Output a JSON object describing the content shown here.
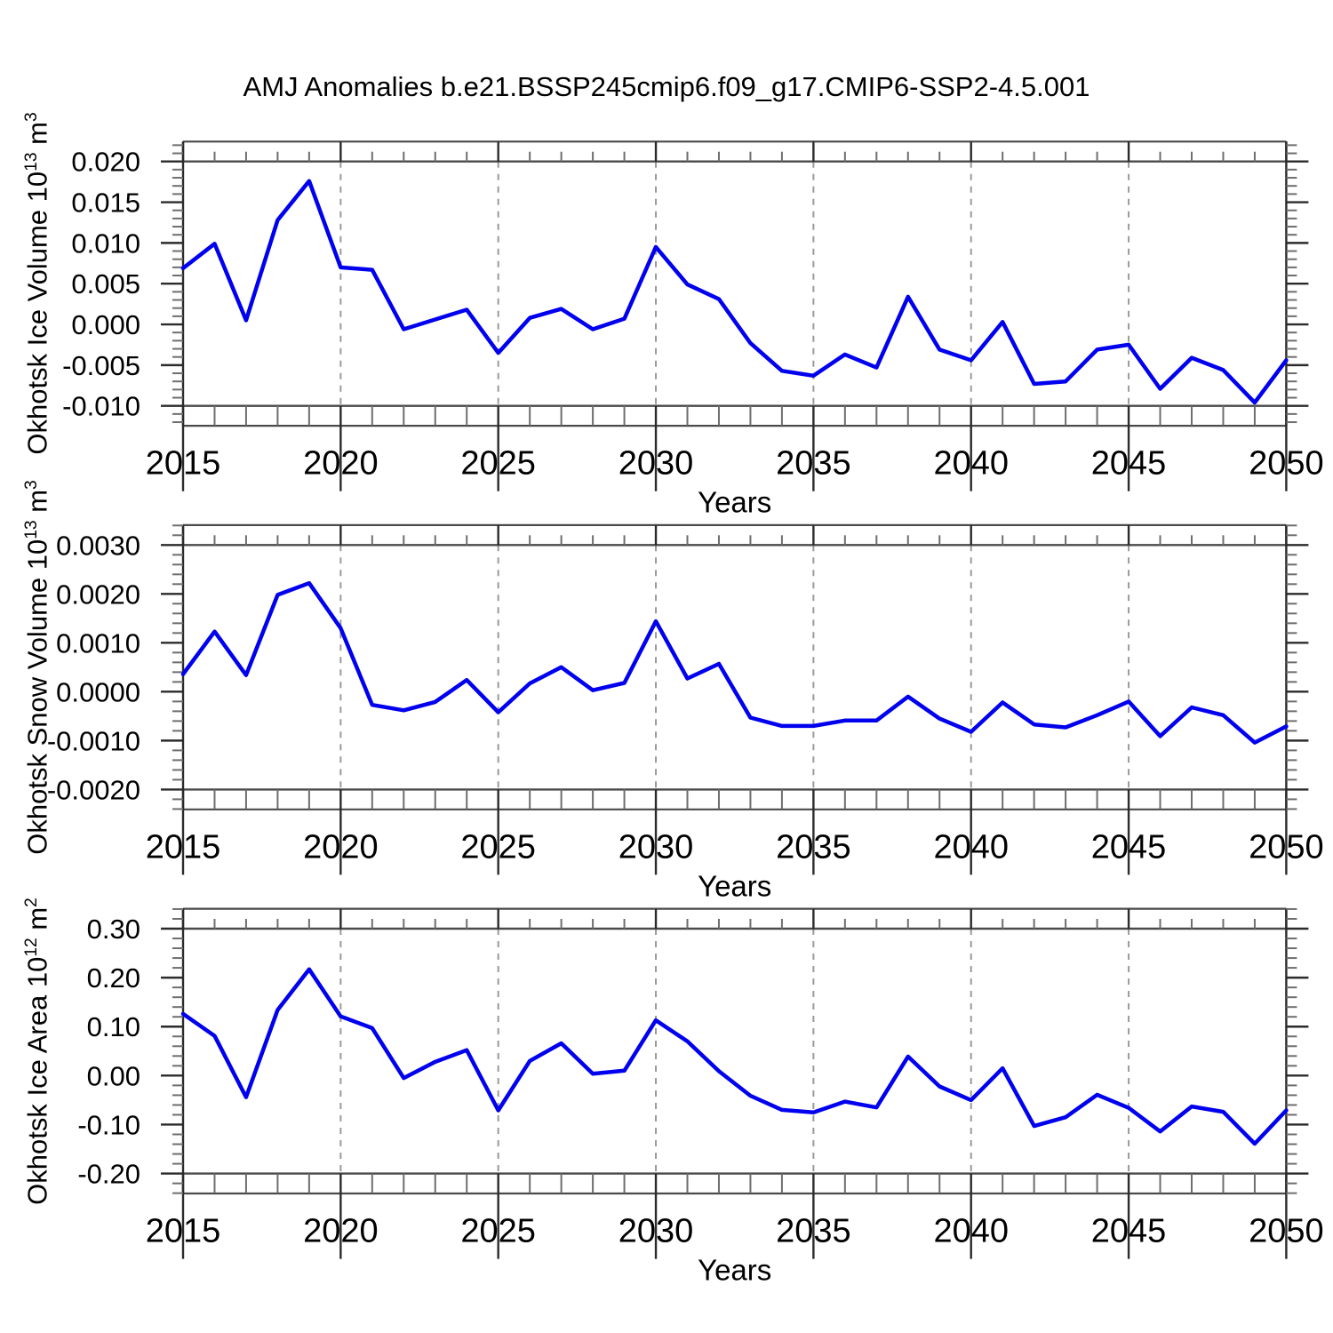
{
  "title": "AMJ Anomalies b.e21.BSSP245cmip6.f09_g17.CMIP6-SSP2-4.5.001",
  "colors": {
    "line": "#0000ee",
    "grid_dash": "#9a9a9a",
    "frame": "#4a4a4a",
    "tick_major": "#2b2b2b",
    "tick_minor": "#6e6e6e",
    "text": "#000000"
  },
  "x_axis": {
    "label": "Years",
    "min": 2015,
    "max": 2050,
    "major_tick_years": [
      2015,
      2020,
      2025,
      2030,
      2035,
      2040,
      2045,
      2050
    ],
    "grid_years": [
      2020,
      2025,
      2030,
      2035,
      2040,
      2045
    ],
    "minor_step": 1
  },
  "chart_data": [
    {
      "type": "line",
      "title": "AMJ Anomalies b.e21.BSSP245cmip6.f09_g17.CMIP6-SSP2-4.5.001",
      "ylabel": "Okhotsk Ice Volume 10^13 m^3",
      "ylabel_parts": [
        [
          "t",
          "Okhotsk Ice Volume 10"
        ],
        [
          "sup",
          "13"
        ],
        [
          "t",
          " m"
        ],
        [
          "sup",
          "3"
        ]
      ],
      "xlabel": "Years",
      "ylim": [
        -0.01,
        0.02
      ],
      "ytick_labels": [
        "0.020",
        "0.015",
        "0.010",
        "0.005",
        "0.000",
        "-0.005",
        "-0.010"
      ],
      "yminor_step": 0.001,
      "grid": "vertical-dashed",
      "legend": "none",
      "x": [
        2015,
        2016,
        2017,
        2018,
        2019,
        2020,
        2021,
        2022,
        2023,
        2024,
        2025,
        2026,
        2027,
        2028,
        2029,
        2030,
        2031,
        2032,
        2033,
        2034,
        2035,
        2036,
        2037,
        2038,
        2039,
        2040,
        2041,
        2042,
        2043,
        2044,
        2045,
        2046,
        2047,
        2048,
        2049,
        2050
      ],
      "values": [
        0.0069,
        0.0099,
        0.0005,
        0.0128,
        0.0176,
        0.007,
        0.0067,
        -0.0006,
        0.0006,
        0.0018,
        -0.0035,
        0.0008,
        0.0019,
        -0.0006,
        0.0007,
        0.0095,
        0.0049,
        0.0031,
        -0.0023,
        -0.0057,
        -0.0063,
        -0.0037,
        -0.0053,
        0.0034,
        -0.0031,
        -0.0044,
        0.0003,
        -0.0073,
        -0.007,
        -0.0031,
        -0.0025,
        -0.0079,
        -0.0041,
        -0.0056,
        -0.0096,
        -0.0044
      ]
    },
    {
      "type": "line",
      "title": "",
      "ylabel": "Okhotsk Snow Volume 10^13 m^3",
      "ylabel_parts": [
        [
          "t",
          "Okhotsk Snow Volume 10"
        ],
        [
          "sup",
          "13"
        ],
        [
          "t",
          " m"
        ],
        [
          "sup",
          "3"
        ]
      ],
      "xlabel": "Years",
      "ylim": [
        -0.002,
        0.003
      ],
      "ytick_labels": [
        "0.0030",
        "0.0020",
        "0.0010",
        "0.0000",
        "-0.0010",
        "-0.0020"
      ],
      "yminor_step": 0.0002,
      "grid": "vertical-dashed",
      "legend": "none",
      "x": [
        2015,
        2016,
        2017,
        2018,
        2019,
        2020,
        2021,
        2022,
        2023,
        2024,
        2025,
        2026,
        2027,
        2028,
        2029,
        2030,
        2031,
        2032,
        2033,
        2034,
        2035,
        2036,
        2037,
        2038,
        2039,
        2040,
        2041,
        2042,
        2043,
        2044,
        2045,
        2046,
        2047,
        2048,
        2049,
        2050
      ],
      "values": [
        0.00036,
        0.00123,
        0.00034,
        0.00198,
        0.00222,
        0.0013,
        -0.00027,
        -0.00038,
        -0.00021,
        0.00024,
        -0.00042,
        0.00017,
        0.0005,
        3e-05,
        0.00018,
        0.00144,
        0.00027,
        0.00057,
        -0.00053,
        -0.0007,
        -0.0007,
        -0.00059,
        -0.00059,
        -0.0001,
        -0.00055,
        -0.00082,
        -0.00022,
        -0.00067,
        -0.00073,
        -0.00048,
        -0.0002,
        -0.00091,
        -0.00032,
        -0.00048,
        -0.00104,
        -0.00071
      ]
    },
    {
      "type": "line",
      "title": "",
      "ylabel": "Okhotsk Ice Area 10^12 m^2",
      "ylabel_parts": [
        [
          "t",
          "Okhotsk Ice Area 10"
        ],
        [
          "sup",
          "12"
        ],
        [
          "t",
          " m"
        ],
        [
          "sup",
          "2"
        ]
      ],
      "xlabel": "Years",
      "ylim": [
        -0.2,
        0.3
      ],
      "ytick_labels": [
        "0.30",
        "0.20",
        "0.10",
        "0.00",
        "-0.10",
        "-0.20"
      ],
      "yminor_step": 0.02,
      "grid": "vertical-dashed",
      "legend": "none",
      "x": [
        2015,
        2016,
        2017,
        2018,
        2019,
        2020,
        2021,
        2022,
        2023,
        2024,
        2025,
        2026,
        2027,
        2028,
        2029,
        2030,
        2031,
        2032,
        2033,
        2034,
        2035,
        2036,
        2037,
        2038,
        2039,
        2040,
        2041,
        2042,
        2043,
        2044,
        2045,
        2046,
        2047,
        2048,
        2049,
        2050
      ],
      "values": [
        0.126,
        0.081,
        -0.044,
        0.134,
        0.217,
        0.121,
        0.097,
        -0.005,
        0.028,
        0.052,
        -0.071,
        0.03,
        0.066,
        0.004,
        0.01,
        0.113,
        0.07,
        0.009,
        -0.041,
        -0.07,
        -0.075,
        -0.053,
        -0.065,
        0.039,
        -0.022,
        -0.05,
        0.015,
        -0.103,
        -0.085,
        -0.039,
        -0.066,
        -0.114,
        -0.063,
        -0.074,
        -0.139,
        -0.071
      ]
    }
  ]
}
